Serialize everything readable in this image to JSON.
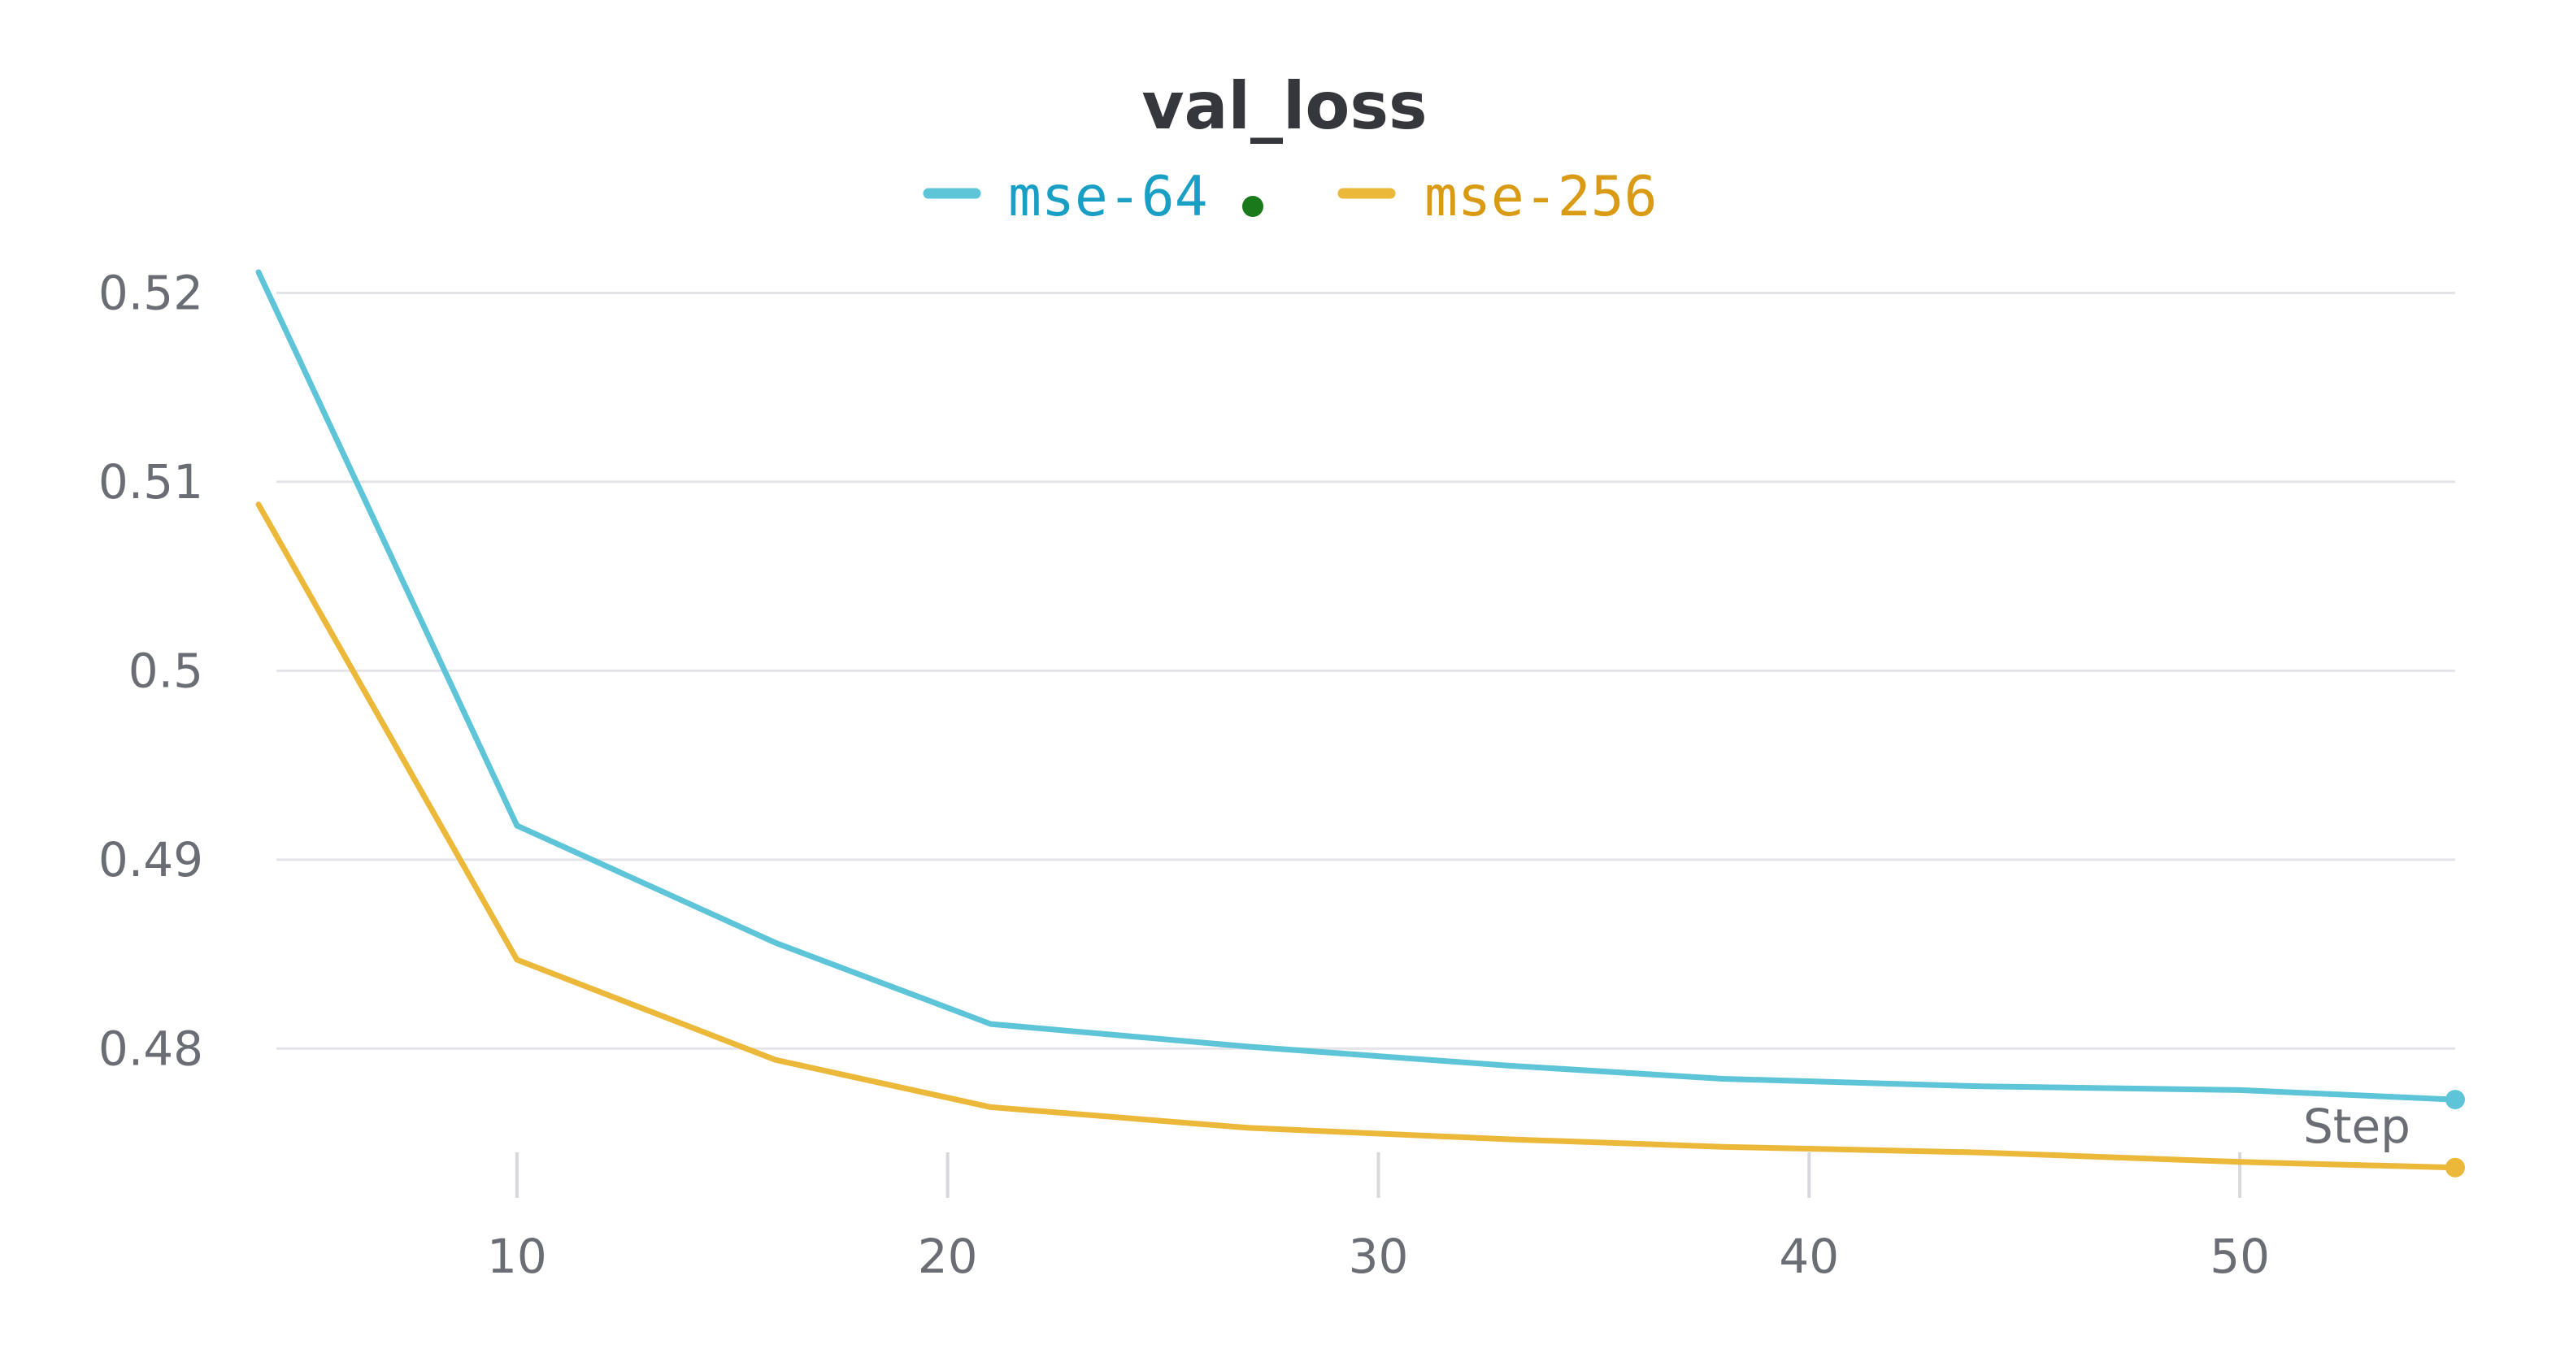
{
  "chart_data": {
    "type": "line",
    "title": "val_loss",
    "xlabel": "Step",
    "ylabel": "",
    "xlim": [
      4,
      55
    ],
    "ylim": [
      0.4727,
      0.5226
    ],
    "x_ticks": [
      10,
      20,
      30,
      40,
      50
    ],
    "y_ticks": [
      0.48,
      0.49,
      0.5,
      0.51,
      0.52
    ],
    "x_tick_labels": [
      "10",
      "20",
      "30",
      "40",
      "50"
    ],
    "y_tick_labels": [
      "0.48",
      "0.49",
      "0.5",
      "0.51",
      "0.52"
    ],
    "grid": "horizontal",
    "legend_position": "top-center",
    "series": [
      {
        "name": "mse-64",
        "color": "#5ec4d8",
        "legend_text_color": "#1a9fc4",
        "marker_dot_color": "#1a7a1a",
        "x": [
          4,
          10,
          16,
          21,
          27,
          33,
          38,
          44,
          50,
          55
        ],
        "y": [
          0.5211,
          0.4918,
          0.4856,
          0.4813,
          0.4801,
          0.4791,
          0.4784,
          0.478,
          0.4778,
          0.4773
        ]
      },
      {
        "name": "mse-256",
        "color": "#ebb83a",
        "legend_text_color": "#d99a14",
        "x": [
          4,
          10,
          16,
          21,
          27,
          33,
          38,
          44,
          50,
          55
        ],
        "y": [
          0.5088,
          0.4847,
          0.4794,
          0.4769,
          0.4758,
          0.4752,
          0.4748,
          0.4745,
          0.474,
          0.4737
        ]
      }
    ]
  }
}
